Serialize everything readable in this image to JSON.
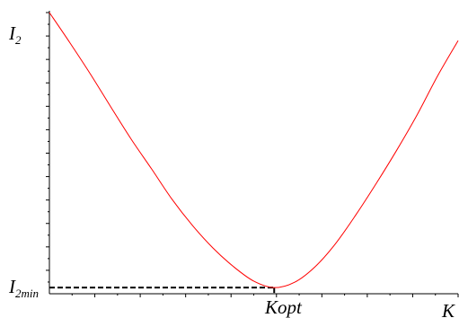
{
  "chart_data": {
    "type": "line",
    "title": "",
    "xlabel": "K",
    "ylabel": "I_2",
    "ylabel_parts": {
      "main": "I",
      "sub": "2"
    },
    "min_label_parts": {
      "main": "I",
      "sub": "2min"
    },
    "kopt_label": "Kopt",
    "xlim": [
      0,
      10
    ],
    "ylim": [
      0,
      10
    ],
    "grid": false,
    "legend": "none",
    "curve_color": "#ff0000",
    "guide_color": "#000000",
    "x_minor_ticks": 18,
    "y_minor_ticks": 24,
    "series": [
      {
        "x": [
          0,
          0.5,
          1,
          1.5,
          2,
          2.5,
          3,
          3.5,
          4,
          4.5,
          5,
          5.5,
          6,
          6.5,
          7,
          7.5,
          8,
          8.5,
          9,
          9.5,
          10
        ],
        "y": [
          10.0,
          8.93,
          7.82,
          6.65,
          5.5,
          4.44,
          3.36,
          2.43,
          1.63,
          0.97,
          0.45,
          0.22,
          0.41,
          0.96,
          1.78,
          2.81,
          3.93,
          5.11,
          6.37,
          7.75,
          9.0
        ]
      }
    ],
    "minimum": {
      "x": 5.5,
      "y": 0.22
    }
  }
}
